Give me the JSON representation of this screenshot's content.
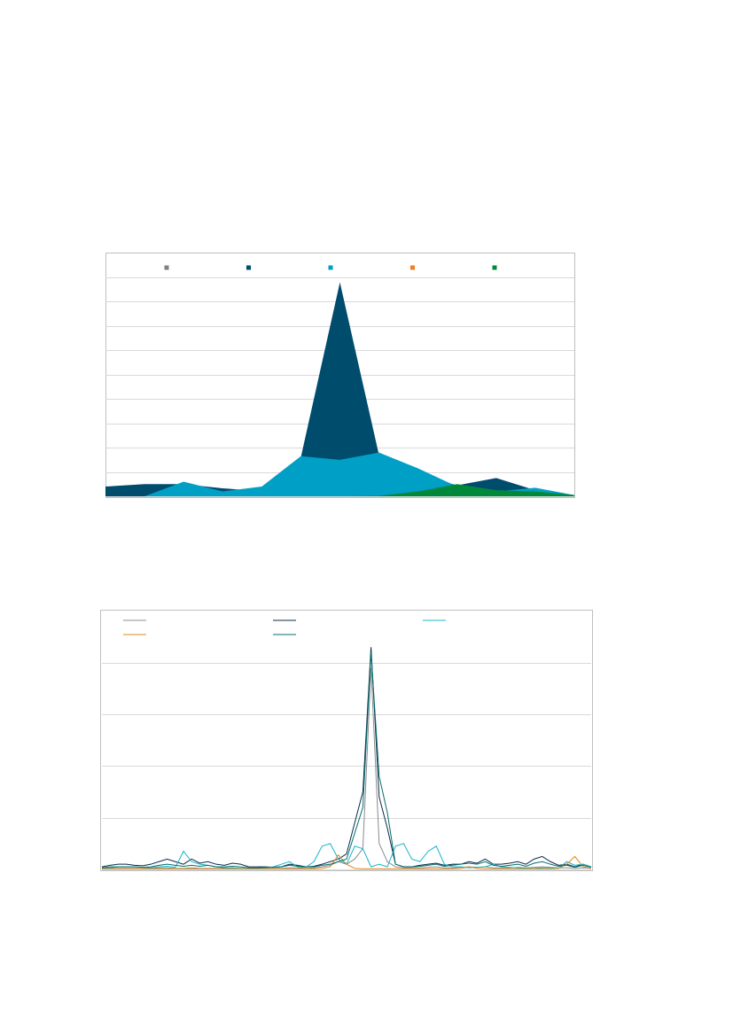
{
  "chart_data": [
    {
      "type": "area",
      "grid": true,
      "legend": "top",
      "categories": [
        null,
        null,
        null,
        null,
        null,
        null,
        null,
        null,
        null,
        null,
        null,
        null,
        null
      ],
      "ylim": [
        0,
        9
      ],
      "yticks": [
        0,
        1,
        2,
        3,
        4,
        5,
        6,
        7,
        8,
        9
      ],
      "series": [
        {
          "color": "#808080",
          "values": [
            0,
            0,
            0,
            0,
            0,
            0,
            0,
            0,
            0,
            0,
            0,
            0,
            0
          ]
        },
        {
          "color": "#004c6d",
          "values": [
            0.4,
            0.5,
            0.5,
            0.33,
            0.2,
            1.6,
            8.8,
            1.7,
            0.9,
            0.45,
            0.75,
            0.25,
            0.05
          ]
        },
        {
          "color": "#00a0c6",
          "values": [
            0,
            0,
            0.6,
            0.2,
            0.4,
            1.65,
            1.5,
            1.8,
            1.15,
            0.4,
            0.2,
            0.35,
            0.05
          ]
        },
        {
          "color": "#f07f1f",
          "values": [
            0,
            0,
            0,
            0,
            0,
            0,
            0,
            0,
            0.02,
            0.05,
            0.08,
            0.15,
            0.03
          ]
        },
        {
          "color": "#00883a",
          "values": [
            0,
            0,
            0,
            0,
            0,
            0,
            0,
            0.02,
            0.2,
            0.5,
            0.25,
            0.2,
            0.05
          ]
        }
      ]
    },
    {
      "type": "line",
      "grid": true,
      "legend": "top",
      "categories": [
        null,
        null,
        null,
        null,
        null,
        null,
        null,
        null,
        null,
        null,
        null,
        null,
        null,
        null,
        null,
        null,
        null,
        null,
        null,
        null,
        null,
        null,
        null,
        null,
        null,
        null,
        null,
        null,
        null,
        null,
        null,
        null,
        null,
        null,
        null,
        null,
        null,
        null,
        null,
        null,
        null,
        null,
        null,
        null,
        null,
        null,
        null,
        null,
        null,
        null,
        null,
        null,
        null,
        null,
        null,
        null,
        null,
        null,
        null,
        null,
        null
      ],
      "ylim": [
        0,
        4.4
      ],
      "yticks": [
        0,
        1,
        2,
        3,
        4
      ],
      "series": [
        {
          "color": "#8c8c8c",
          "values": [
            0.02,
            0.02,
            0.02,
            0.02,
            0.02,
            0.02,
            0.02,
            0.03,
            0.03,
            0.02,
            0.02,
            0.03,
            0.02,
            0.02,
            0.02,
            0.02,
            0.02,
            0.02,
            0.02,
            0.02,
            0.02,
            0.02,
            0.02,
            0.03,
            0.03,
            0.02,
            0.03,
            0.05,
            0.08,
            0.15,
            0.1,
            0.2,
            0.4,
            3.9,
            0.5,
            0.15,
            0.05,
            0.03,
            0.03,
            0.03,
            0.04,
            0.05,
            0.03,
            0.03,
            0.04,
            0.05,
            0.04,
            0.05,
            0.03,
            0.03,
            0.03,
            0.04,
            0.03,
            0.04,
            0.05,
            0.04,
            0.03,
            0.03,
            0.02,
            0.03,
            0.02
          ]
        },
        {
          "color": "#0d2a4a",
          "values": [
            0.05,
            0.08,
            0.1,
            0.1,
            0.08,
            0.07,
            0.1,
            0.15,
            0.2,
            0.15,
            0.1,
            0.2,
            0.12,
            0.15,
            0.1,
            0.08,
            0.12,
            0.1,
            0.05,
            0.05,
            0.05,
            0.04,
            0.05,
            0.1,
            0.08,
            0.05,
            0.06,
            0.1,
            0.15,
            0.2,
            0.3,
            0.9,
            1.5,
            4.3,
            1.4,
            0.8,
            0.1,
            0.05,
            0.05,
            0.08,
            0.1,
            0.12,
            0.08,
            0.1,
            0.1,
            0.15,
            0.12,
            0.2,
            0.1,
            0.1,
            0.12,
            0.15,
            0.1,
            0.2,
            0.25,
            0.15,
            0.08,
            0.1,
            0.05,
            0.1,
            0.05
          ]
        },
        {
          "color": "#19b4c8",
          "values": [
            0.02,
            0.03,
            0.05,
            0.05,
            0.05,
            0.04,
            0.03,
            0.05,
            0.06,
            0.04,
            0.35,
            0.15,
            0.1,
            0.08,
            0.05,
            0.03,
            0.03,
            0.02,
            0.02,
            0.02,
            0.03,
            0.05,
            0.1,
            0.15,
            0.05,
            0.04,
            0.15,
            0.45,
            0.5,
            0.2,
            0.1,
            0.45,
            0.4,
            0.05,
            0.1,
            0.05,
            0.45,
            0.5,
            0.2,
            0.15,
            0.35,
            0.45,
            0.1,
            0.05,
            0.05,
            0.03,
            0.04,
            0.05,
            0.1,
            0.05,
            0.04,
            0.03,
            0.02,
            0.02,
            0.03,
            0.03,
            0.02,
            0.15,
            0.08,
            0.1,
            0.05
          ]
        },
        {
          "color": "#e08a1e",
          "values": [
            0.01,
            0.01,
            0.01,
            0.01,
            0.01,
            0.01,
            0.01,
            0.01,
            0.01,
            0.01,
            0.01,
            0.01,
            0.01,
            0.01,
            0.01,
            0.01,
            0.01,
            0.01,
            0.01,
            0.01,
            0.01,
            0.01,
            0.01,
            0.01,
            0.01,
            0.01,
            0.01,
            0.02,
            0.05,
            0.28,
            0.1,
            0.02,
            0.01,
            0.01,
            0.01,
            0.01,
            0.01,
            0.01,
            0.01,
            0.01,
            0.01,
            0.01,
            0.01,
            0.01,
            0.02,
            0.05,
            0.02,
            0.01,
            0.01,
            0.01,
            0.01,
            0.01,
            0.01,
            0.01,
            0.01,
            0.01,
            0.02,
            0.1,
            0.25,
            0.05,
            0.02
          ]
        },
        {
          "color": "#00706e",
          "values": [
            0.03,
            0.05,
            0.05,
            0.05,
            0.05,
            0.04,
            0.05,
            0.08,
            0.1,
            0.08,
            0.06,
            0.08,
            0.06,
            0.08,
            0.05,
            0.05,
            0.06,
            0.05,
            0.03,
            0.03,
            0.04,
            0.04,
            0.05,
            0.08,
            0.06,
            0.05,
            0.05,
            0.08,
            0.1,
            0.15,
            0.2,
            0.7,
            1.2,
            4.2,
            1.8,
            1.1,
            0.1,
            0.05,
            0.05,
            0.06,
            0.08,
            0.1,
            0.06,
            0.08,
            0.1,
            0.12,
            0.1,
            0.15,
            0.08,
            0.06,
            0.08,
            0.1,
            0.06,
            0.12,
            0.15,
            0.1,
            0.06,
            0.08,
            0.04,
            0.08,
            0.04
          ]
        }
      ]
    }
  ]
}
